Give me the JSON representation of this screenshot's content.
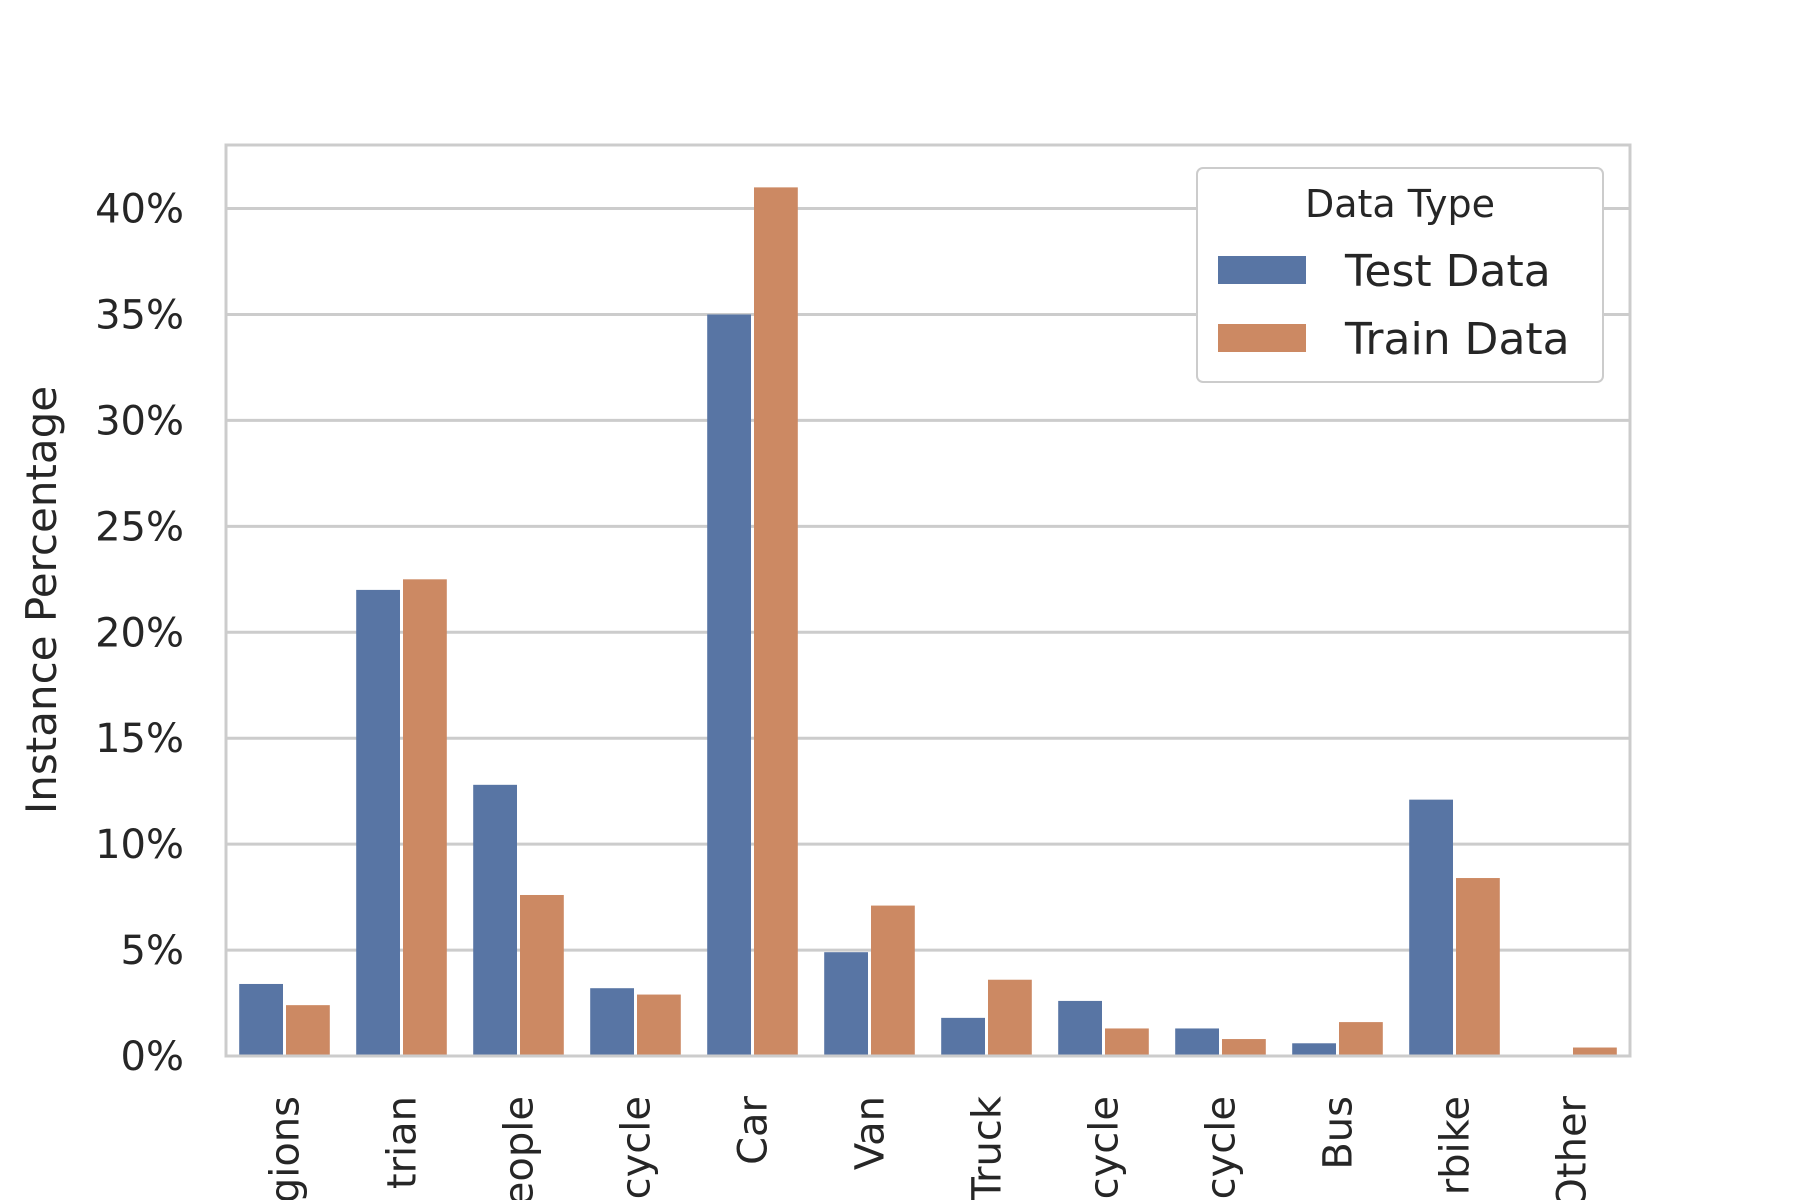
{
  "chart_data": {
    "type": "bar",
    "categories": [
      "Regions",
      "Pedestrian",
      "People",
      "Bicycle",
      "Car",
      "Van",
      "Truck",
      "Tricycle",
      "Awning-tricycle",
      "Bus",
      "Motorbike",
      "Other"
    ],
    "category_tick_text": [
      "gions",
      "trian",
      "eople",
      "cycle",
      "Car",
      "Van",
      "Truck",
      "cycle",
      "cycle",
      "Bus",
      "rbike",
      "Other"
    ],
    "series": [
      {
        "name": "Test Data",
        "color": "#5875a4",
        "values": [
          3.4,
          22.0,
          12.8,
          3.2,
          35.0,
          4.9,
          1.8,
          2.6,
          1.3,
          0.6,
          12.1,
          0.0
        ]
      },
      {
        "name": "Train Data",
        "color": "#cc8963",
        "values": [
          2.4,
          22.5,
          7.6,
          2.9,
          41.0,
          7.1,
          3.6,
          1.3,
          0.8,
          1.6,
          8.4,
          0.4
        ]
      }
    ],
    "ylabel": "Instance Percentage",
    "xlabel": "",
    "yticks": [
      0,
      5,
      10,
      15,
      20,
      25,
      30,
      35,
      40
    ],
    "ytick_labels": [
      "0%",
      "5%",
      "10%",
      "15%",
      "20%",
      "25%",
      "30%",
      "35%",
      "40%"
    ],
    "ylim": [
      0,
      43
    ],
    "grid": true,
    "legend": {
      "title": "Data Type",
      "placement": "top-right"
    }
  }
}
